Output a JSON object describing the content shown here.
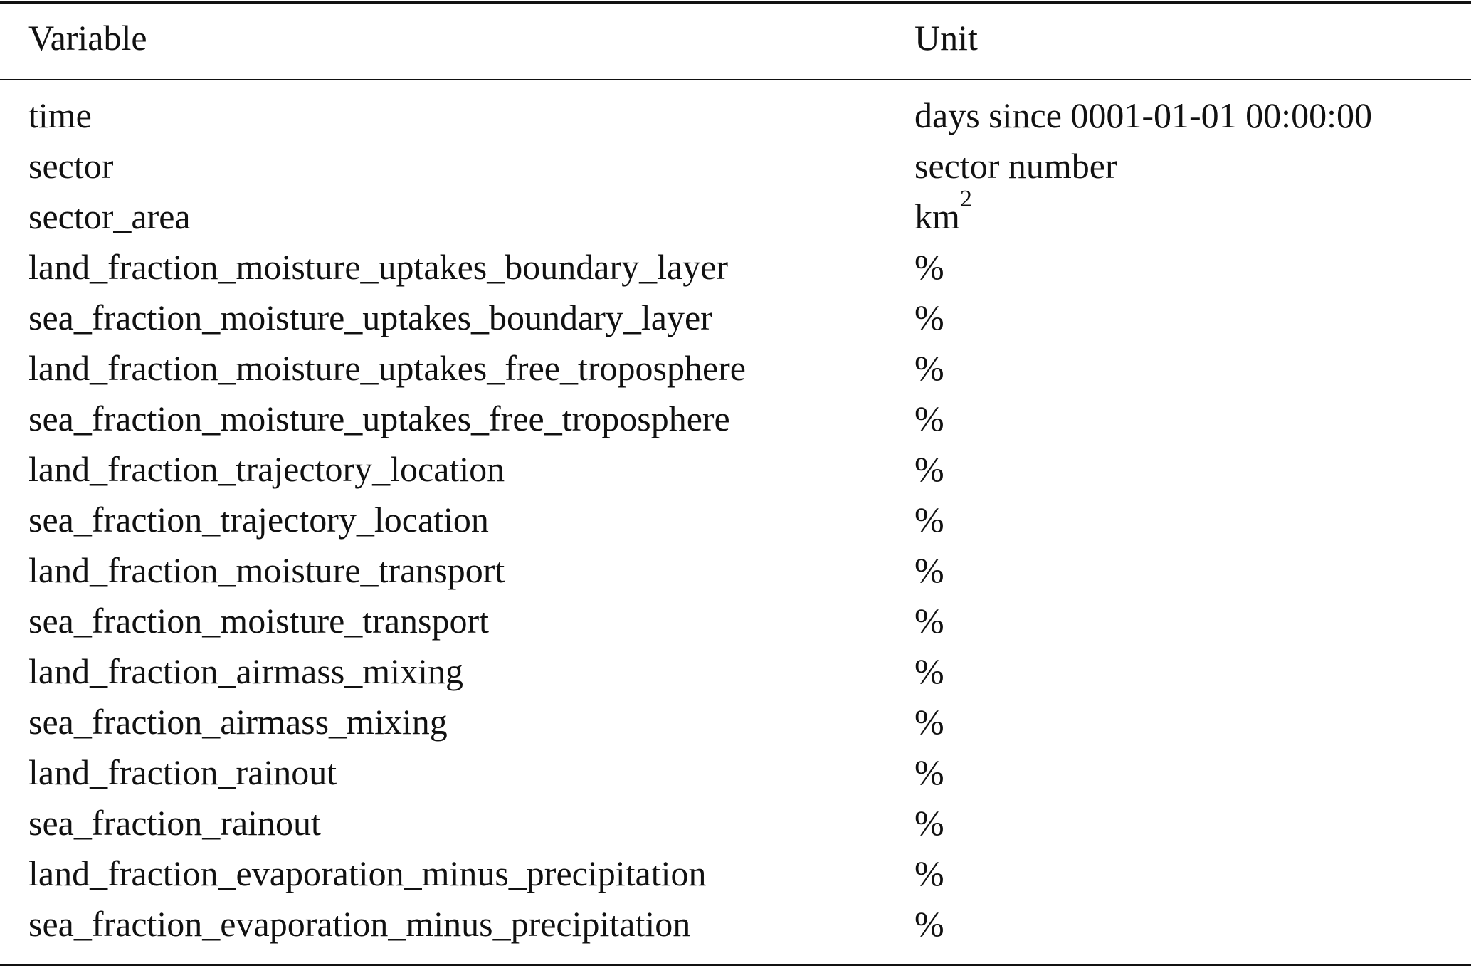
{
  "table": {
    "header": [
      "Variable",
      "Unit"
    ],
    "rows": [
      [
        "time",
        "days since 0001-01-01 00:00:00"
      ],
      [
        "sector",
        "sector number"
      ],
      [
        "sector_area",
        {
          "base": "km",
          "sup": "2"
        }
      ],
      [
        "land_fraction_moisture_uptakes_boundary_layer",
        "%"
      ],
      [
        "sea_fraction_moisture_uptakes_boundary_layer",
        "%"
      ],
      [
        "land_fraction_moisture_uptakes_free_troposphere",
        "%"
      ],
      [
        "sea_fraction_moisture_uptakes_free_troposphere",
        "%"
      ],
      [
        "land_fraction_trajectory_location",
        "%"
      ],
      [
        "sea_fraction_trajectory_location",
        "%"
      ],
      [
        "land_fraction_moisture_transport",
        "%"
      ],
      [
        "sea_fraction_moisture_transport",
        "%"
      ],
      [
        "land_fraction_airmass_mixing",
        "%"
      ],
      [
        "sea_fraction_airmass_mixing",
        "%"
      ],
      [
        "land_fraction_rainout",
        "%"
      ],
      [
        "sea_fraction_rainout",
        "%"
      ],
      [
        "land_fraction_evaporation_minus_precipitation",
        "%"
      ],
      [
        "sea_fraction_evaporation_minus_precipitation",
        "%"
      ]
    ]
  }
}
